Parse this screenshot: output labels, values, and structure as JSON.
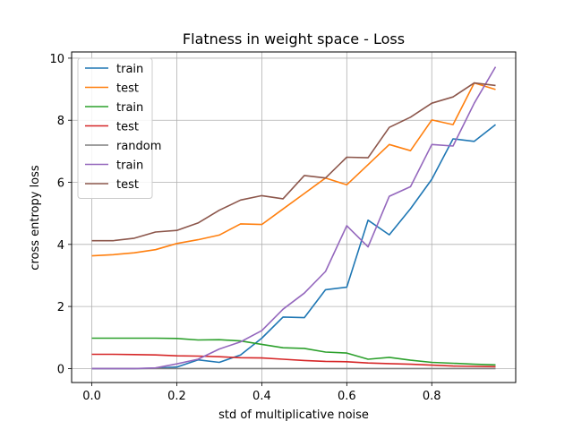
{
  "chart_data": {
    "type": "line",
    "title": "Flatness in weight space - Loss",
    "xlabel": "std of multiplicative noise",
    "ylabel": "cross entropy loss",
    "xlim": [
      -0.0475,
      0.9975
    ],
    "ylim": [
      -0.45,
      10.2
    ],
    "xticks": [
      0.0,
      0.2,
      0.4,
      0.6,
      0.8
    ],
    "xtick_labels": [
      "0.0",
      "0.2",
      "0.4",
      "0.6",
      "0.8"
    ],
    "yticks": [
      0,
      2,
      4,
      6,
      8,
      10
    ],
    "ytick_labels": [
      "0",
      "2",
      "4",
      "6",
      "8",
      "10"
    ],
    "grid": true,
    "legend_position": "top-left",
    "x": [
      0.0,
      0.05,
      0.1,
      0.15,
      0.2,
      0.25,
      0.3,
      0.35,
      0.4,
      0.45,
      0.5,
      0.55,
      0.6,
      0.65,
      0.7,
      0.75,
      0.8,
      0.85,
      0.9,
      0.95
    ],
    "series": [
      {
        "name": "train",
        "color": "#1f77b4",
        "values": [
          0.0,
          0.0,
          0.0,
          0.01,
          0.05,
          0.28,
          0.2,
          0.44,
          0.98,
          1.66,
          1.64,
          2.54,
          2.62,
          4.78,
          4.31,
          5.15,
          6.1,
          7.4,
          7.32,
          7.86
        ]
      },
      {
        "name": "test",
        "color": "#ff7f0e",
        "values": [
          3.63,
          3.67,
          3.73,
          3.83,
          4.03,
          4.15,
          4.3,
          4.66,
          4.64,
          5.14,
          5.64,
          6.14,
          5.92,
          6.57,
          7.22,
          7.02,
          8.01,
          7.86,
          9.2,
          8.99
        ]
      },
      {
        "name": "train",
        "color": "#2ca02c",
        "values": [
          0.98,
          0.98,
          0.98,
          0.98,
          0.97,
          0.92,
          0.93,
          0.89,
          0.78,
          0.67,
          0.65,
          0.53,
          0.5,
          0.3,
          0.36,
          0.27,
          0.2,
          0.17,
          0.14,
          0.12
        ]
      },
      {
        "name": "test",
        "color": "#d62728",
        "values": [
          0.46,
          0.46,
          0.45,
          0.44,
          0.41,
          0.4,
          0.38,
          0.35,
          0.34,
          0.3,
          0.26,
          0.23,
          0.22,
          0.18,
          0.16,
          0.14,
          0.11,
          0.08,
          0.07,
          0.06
        ]
      },
      {
        "name": "random",
        "color": "#7f7f7f",
        "values": [
          0.0,
          0.0,
          0.0,
          0.0,
          0.0,
          0.0,
          0.0,
          0.0,
          0.0,
          0.0,
          0.0,
          0.0,
          0.0,
          0.0,
          0.0,
          0.0,
          0.0,
          0.0,
          0.0,
          0.0
        ]
      },
      {
        "name": "train",
        "color": "#9467bd",
        "values": [
          0.0,
          0.0,
          0.0,
          0.02,
          0.15,
          0.3,
          0.63,
          0.86,
          1.22,
          1.91,
          2.43,
          3.13,
          4.6,
          3.92,
          5.55,
          5.86,
          7.22,
          7.17,
          8.55,
          9.72
        ]
      },
      {
        "name": "test",
        "color": "#8c564b",
        "values": [
          4.12,
          4.12,
          4.2,
          4.4,
          4.45,
          4.69,
          5.1,
          5.43,
          5.57,
          5.47,
          6.22,
          6.14,
          6.81,
          6.79,
          7.77,
          8.1,
          8.55,
          8.75,
          9.2,
          9.12
        ]
      }
    ]
  }
}
